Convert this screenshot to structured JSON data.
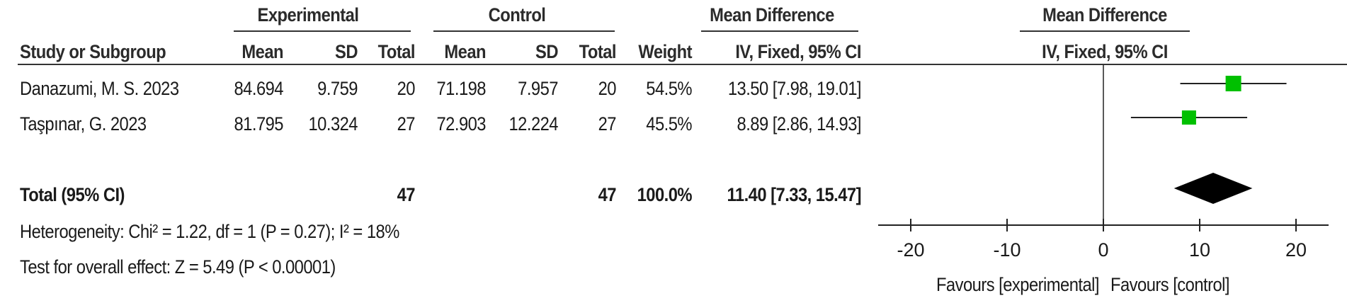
{
  "header": {
    "group_experimental": "Experimental",
    "group_control": "Control",
    "group_md": "Mean Difference",
    "plot_title": "Mean Difference",
    "col_study": "Study or Subgroup",
    "col_mean_e": "Mean",
    "col_sd_e": "SD",
    "col_total_e": "Total",
    "col_mean_c": "Mean",
    "col_sd_c": "SD",
    "col_total_c": "Total",
    "col_weight": "Weight",
    "col_ci": "IV, Fixed, 95% CI",
    "plot_ci": "IV, Fixed, 95% CI"
  },
  "studies": [
    {
      "name": "Danazumi, M. S. 2023",
      "mean_e": "84.694",
      "sd_e": "9.759",
      "total_e": "20",
      "mean_c": "71.198",
      "sd_c": "7.957",
      "total_c": "20",
      "weight": "54.5%",
      "ci_text": "13.50 [7.98, 19.01]"
    },
    {
      "name": "Taşpınar, G. 2023",
      "mean_e": "81.795",
      "sd_e": "10.324",
      "total_e": "27",
      "mean_c": "72.903",
      "sd_c": "12.224",
      "total_c": "27",
      "weight": "45.5%",
      "ci_text": "8.89 [2.86, 14.93]"
    }
  ],
  "total": {
    "label": "Total (95% CI)",
    "total_e": "47",
    "total_c": "47",
    "weight": "100.0%",
    "ci_text": "11.40 [7.33, 15.47]"
  },
  "heterogeneity": "Heterogeneity: Chi² = 1.22, df = 1 (P = 0.27); I² = 18%",
  "overall_effect": "Test for overall effect: Z = 5.49 (P < 0.00001)",
  "chart_data": {
    "type": "scatter",
    "subtype": "forest-plot",
    "title": "Mean Difference",
    "subtitle": "IV, Fixed, 95% CI",
    "xlim": [
      -20,
      20
    ],
    "ticks": [
      -20,
      -10,
      0,
      10,
      20
    ],
    "tick_labels": [
      "-20",
      "-10",
      "0",
      "10",
      "20"
    ],
    "favours_left": "Favours [experimental]",
    "favours_right": "Favours [control]",
    "marker_color": "#00c000",
    "diamond_color": "#000000",
    "studies": [
      {
        "estimate": 13.5,
        "lower": 7.98,
        "upper": 19.01,
        "weight": 54.5
      },
      {
        "estimate": 8.89,
        "lower": 2.86,
        "upper": 14.93,
        "weight": 45.5
      }
    ],
    "total": {
      "estimate": 11.4,
      "lower": 7.33,
      "upper": 15.47
    }
  }
}
